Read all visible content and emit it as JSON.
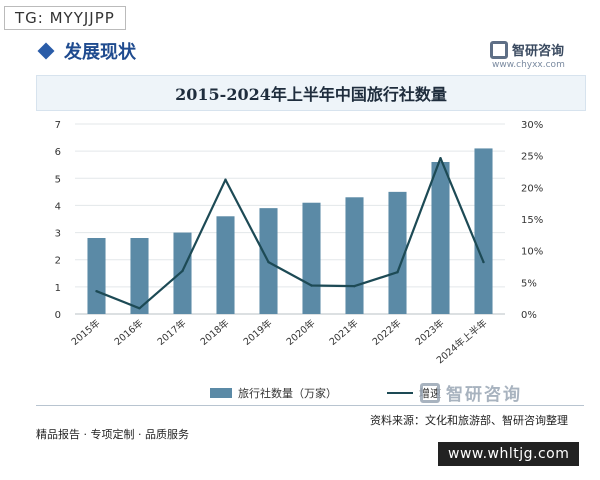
{
  "overlay": {
    "tag": "TG: MYYJJPP",
    "url": "www.whltjg.com"
  },
  "header": {
    "section_title": "发展现状",
    "logo_text": "智研咨询",
    "site": "www.chyxx.com"
  },
  "colors": {
    "bar": "#5b8aa6",
    "line": "#1d4a55",
    "grid": "#e3e7ea",
    "accent": "#1f4b8f"
  },
  "chart_data": {
    "type": "bar",
    "title": "2015-2024年上半年中国旅行社数量",
    "categories": [
      "2015年",
      "2016年",
      "2017年",
      "2018年",
      "2019年",
      "2020年",
      "2021年",
      "2022年",
      "2023年",
      "2024年上半年"
    ],
    "series": [
      {
        "name": "旅行社数量（万家）",
        "type": "bar",
        "axis": "left",
        "values": [
          2.8,
          2.8,
          3.0,
          3.6,
          3.9,
          4.1,
          4.3,
          4.5,
          5.6,
          6.1
        ]
      },
      {
        "name": "增速",
        "type": "line",
        "axis": "right",
        "values": [
          3.6,
          0.9,
          6.8,
          21.2,
          8.2,
          4.5,
          4.4,
          6.6,
          24.6,
          8.2
        ]
      }
    ],
    "ylim_left": [
      0,
      7
    ],
    "yticks_left": [
      "0",
      "1",
      "2",
      "3",
      "4",
      "5",
      "6",
      "7"
    ],
    "ylim_right": [
      0,
      30
    ],
    "yticks_right": [
      "0%",
      "5%",
      "10%",
      "15%",
      "20%",
      "25%",
      "30%"
    ],
    "grid": true,
    "legend_position": "bottom"
  },
  "footer": {
    "left": "精品报告 · 专项定制 · 品质服务",
    "source": "资料来源：文化和旅游部、智研咨询整理"
  }
}
